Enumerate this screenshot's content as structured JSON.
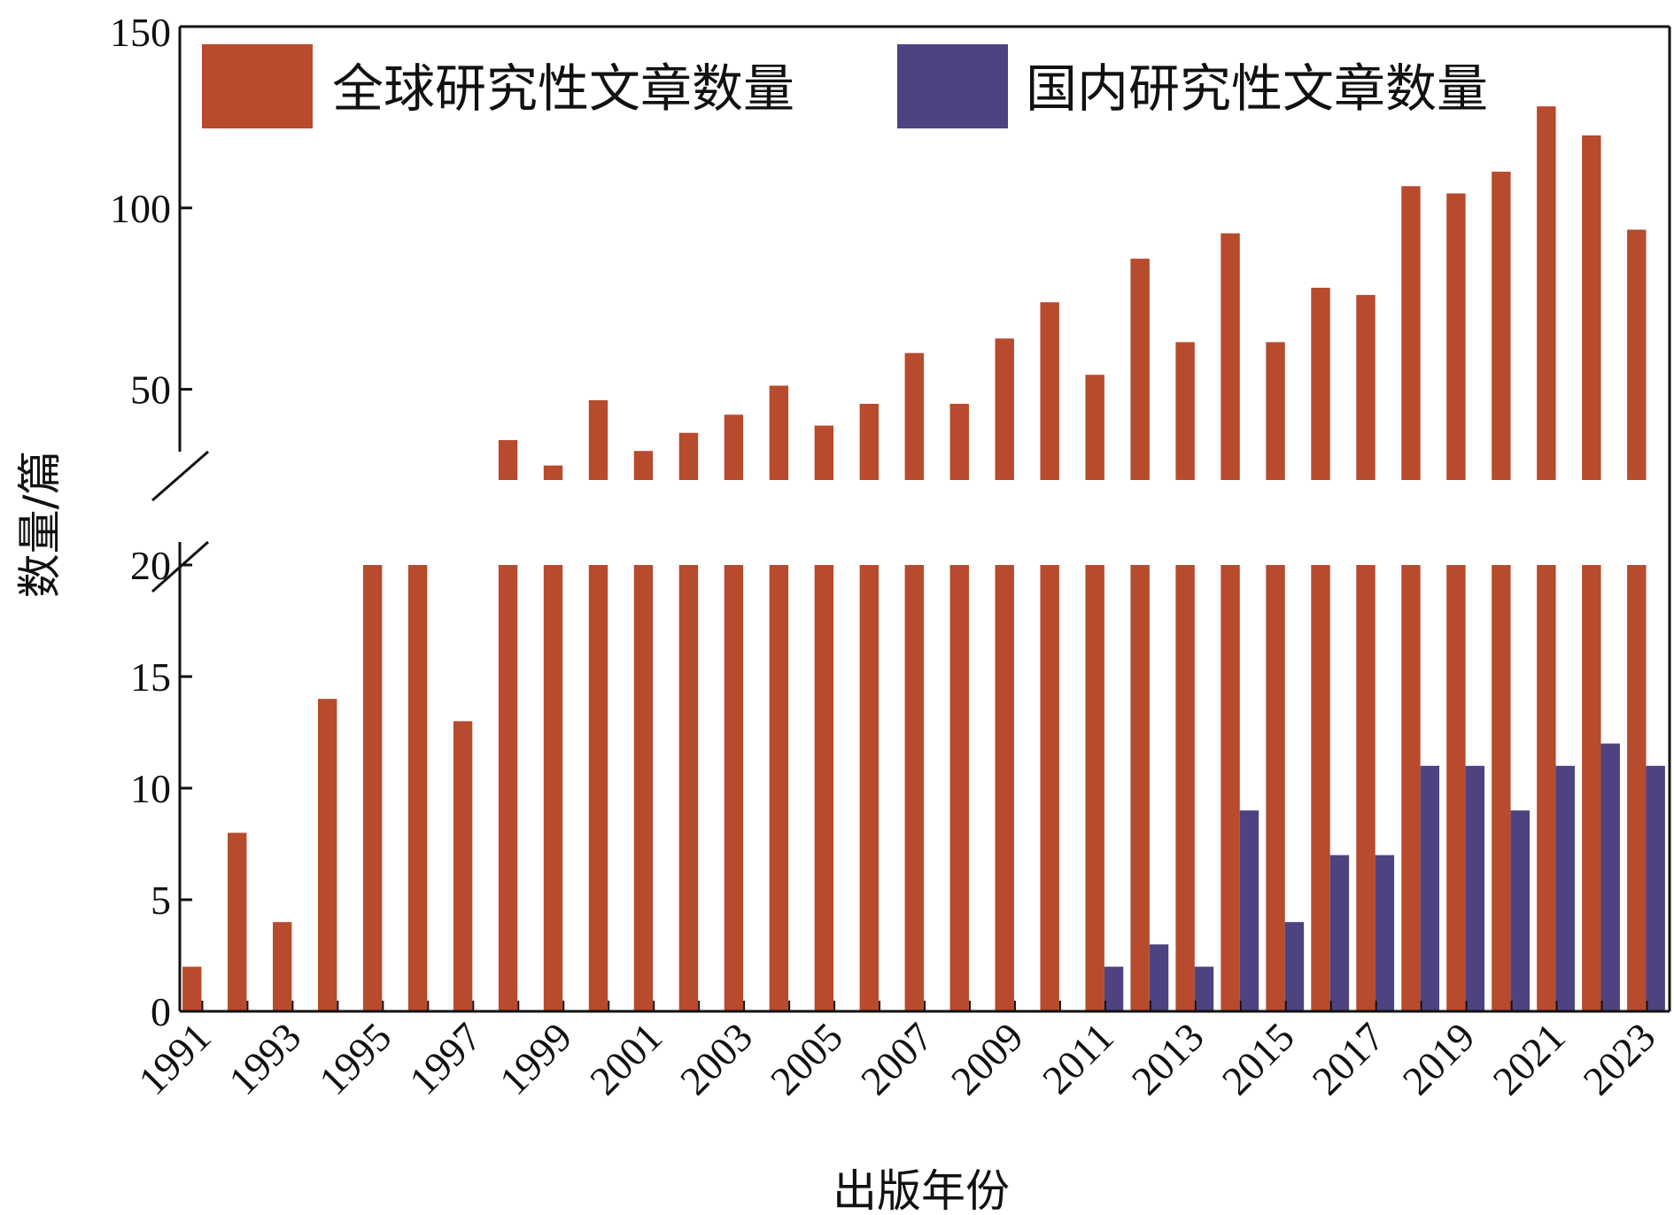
{
  "chart_data": {
    "type": "bar",
    "title": "",
    "xlabel": "出版年份",
    "ylabel": "数量/篇",
    "y_axis_break": [
      20,
      25
    ],
    "lower_ticks": [
      0,
      5,
      10,
      15,
      20
    ],
    "upper_ticks": [
      50,
      100,
      150
    ],
    "ylim": [
      0,
      150
    ],
    "x_tick_labels": [
      "1991",
      "1993",
      "1995",
      "1997",
      "1999",
      "2001",
      "2003",
      "2005",
      "2007",
      "2009",
      "2011",
      "2013",
      "2015",
      "2017",
      "2019",
      "2021",
      "2023"
    ],
    "categories": [
      "1991",
      "1992",
      "1993",
      "1994",
      "1995",
      "1996",
      "1997",
      "1998",
      "1999",
      "2000",
      "2001",
      "2002",
      "2003",
      "2004",
      "2005",
      "2006",
      "2007",
      "2008",
      "2009",
      "2010",
      "2011",
      "2012",
      "2013",
      "2014",
      "2015",
      "2016",
      "2017",
      "2018",
      "2019",
      "2020",
      "2021",
      "2022",
      "2023"
    ],
    "legend_position": "top",
    "series": [
      {
        "name": "全球研究性文章数量",
        "color": "#b84a2d",
        "values": [
          2,
          8,
          4,
          14,
          22,
          20,
          13,
          36,
          29,
          47,
          33,
          38,
          43,
          51,
          40,
          46,
          60,
          46,
          64,
          74,
          54,
          86,
          63,
          93,
          63,
          78,
          76,
          106,
          104,
          110,
          128,
          120,
          94
        ]
      },
      {
        "name": "国内研究性文章数量",
        "color": "#4e4380",
        "values": [
          0,
          0,
          0,
          0,
          0,
          0,
          0,
          0,
          0,
          0,
          0,
          0,
          0,
          0,
          0,
          0,
          0,
          0,
          0,
          0,
          2,
          3,
          2,
          9,
          4,
          7,
          7,
          11,
          11,
          9,
          11,
          12,
          11
        ]
      }
    ]
  }
}
